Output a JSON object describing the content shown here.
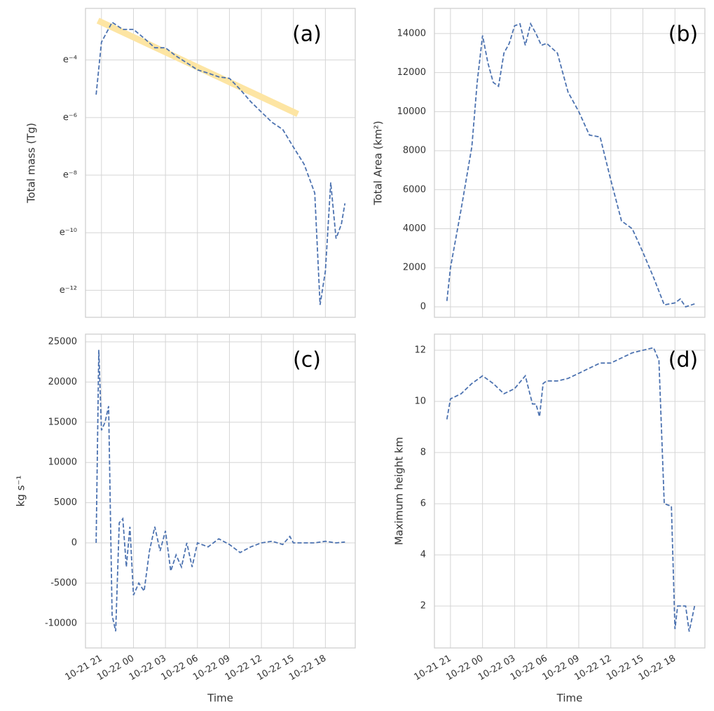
{
  "chart_data": [
    {
      "type": "line",
      "annotation": "(a)",
      "ylabel": "Total mass (Tg)",
      "sharex": 2,
      "log_y": true,
      "grid": true,
      "ylim": [
        2.4e-06,
        0.11
      ],
      "yticks": [
        {
          "value": 0.018315638888734,
          "label": "e⁻⁴"
        },
        {
          "value": 0.002478752176666,
          "label": "e⁻⁶"
        },
        {
          "value": 0.000335462627903,
          "label": "e⁻⁸"
        },
        {
          "value": 4.53999297625e-05,
          "label": "e⁻¹⁰"
        },
        {
          "value": 6.14421235333e-06,
          "label": "e⁻¹²"
        }
      ],
      "series": [
        {
          "color": "#4c72b0",
          "x": [
            "10-21 20:30",
            "10-21 21",
            "10-21 22",
            "10-21 23",
            "10-22 00",
            "10-22 01",
            "10-22 02",
            "10-22 03",
            "10-22 04",
            "10-22 05",
            "10-22 06",
            "10-22 07",
            "10-22 08",
            "10-22 09",
            "10-22 10",
            "10-22 11",
            "10-22 12",
            "10-22 13",
            "10-22 14",
            "10-22 15",
            "10-22 16",
            "10-22 17",
            "10-22 17:30",
            "10-22 18",
            "10-22 18:30",
            "10-22 19",
            "10-22 19:30",
            "10-22 19:50"
          ],
          "values": [
            0.0055,
            0.034,
            0.068,
            0.053,
            0.053,
            0.039,
            0.028,
            0.028,
            0.021,
            0.0166,
            0.013,
            0.0116,
            0.0102,
            0.0097,
            0.0066,
            0.0043,
            0.003,
            0.0021,
            0.00164,
            0.00089,
            0.00049,
            0.00018,
            3.7e-06,
            1.2e-05,
            0.00026,
            3.7e-05,
            6.1e-05,
            0.000126
          ]
        }
      ],
      "fit_line": {
        "color": "#fde5a3",
        "x": [
          "10-21 20:40",
          "10-22 15:25"
        ],
        "values": [
          0.072,
          0.0028
        ]
      }
    },
    {
      "type": "line",
      "annotation": "(b)",
      "ylabel": "Total Area (km²)",
      "sharex": 3,
      "grid": true,
      "ylim": [
        -540,
        15290
      ],
      "yticks": [
        0,
        2000,
        4000,
        6000,
        8000,
        10000,
        12000,
        14000
      ],
      "series": [
        {
          "color": "#4c72b0",
          "x": [
            "10-21 20:40",
            "10-21 21",
            "10-21 22",
            "10-21 23",
            "10-21 23:30",
            "10-22 00",
            "10-22 00:30",
            "10-22 01",
            "10-22 01:30",
            "10-22 02",
            "10-22 02:30",
            "10-22 03",
            "10-22 03:30",
            "10-22 04",
            "10-22 04:30",
            "10-22 05",
            "10-22 05:30",
            "10-22 06",
            "10-22 07",
            "10-22 08",
            "10-22 09",
            "10-22 10",
            "10-22 11",
            "10-22 12",
            "10-22 13",
            "10-22 14",
            "10-22 15",
            "10-22 16",
            "10-22 17",
            "10-22 18",
            "10-22 18:30",
            "10-22 19",
            "10-22 19:50"
          ],
          "values": [
            300,
            2000,
            5000,
            8200,
            11500,
            13900,
            12500,
            11500,
            11300,
            13000,
            13500,
            14400,
            14500,
            13400,
            14500,
            14000,
            13400,
            13500,
            13000,
            11000,
            10000,
            8800,
            8700,
            6500,
            4400,
            4000,
            2800,
            1500,
            100,
            200,
            400,
            0,
            150
          ]
        }
      ]
    },
    {
      "type": "line",
      "annotation": "(c)",
      "ylabel": "kg s⁻¹",
      "xlabel": "Time",
      "grid": true,
      "xlim": [
        "10-21 19:30",
        "10-22 20:48"
      ],
      "xticks": [
        "10-21 21",
        "10-22 00",
        "10-22 03",
        "10-22 06",
        "10-22 09",
        "10-22 12",
        "10-22 15",
        "10-22 18"
      ],
      "ylim": [
        -13070,
        25960
      ],
      "yticks": [
        -10000,
        -5000,
        0,
        5000,
        10000,
        15000,
        20000,
        25000
      ],
      "series": [
        {
          "color": "#4c72b0",
          "x": [
            "10-21 20:30",
            "10-21 20:45",
            "10-21 21",
            "10-21 21:20",
            "10-21 21:40",
            "10-21 22",
            "10-21 22:20",
            "10-21 22:40",
            "10-21 23",
            "10-21 23:20",
            "10-21 23:40",
            "10-22 00",
            "10-22 00:30",
            "10-22 01",
            "10-22 01:30",
            "10-22 02",
            "10-22 02:30",
            "10-22 03",
            "10-22 03:30",
            "10-22 04",
            "10-22 04:30",
            "10-22 05",
            "10-22 05:30",
            "10-22 06",
            "10-22 07",
            "10-22 08",
            "10-22 09",
            "10-22 10",
            "10-22 11",
            "10-22 12",
            "10-22 13",
            "10-22 14",
            "10-22 14:40",
            "10-22 15",
            "10-22 16",
            "10-22 17",
            "10-22 18",
            "10-22 19",
            "10-22 19:50"
          ],
          "values": [
            0,
            24000,
            14000,
            15000,
            17000,
            -9000,
            -11000,
            2500,
            3000,
            -3000,
            2000,
            -6500,
            -5000,
            -6000,
            -1000,
            2000,
            -1000,
            1500,
            -3500,
            -1500,
            -3000,
            0,
            -3000,
            0,
            -500,
            500,
            -200,
            -1200,
            -500,
            0,
            200,
            -200,
            800,
            0,
            0,
            0,
            200,
            0,
            100
          ]
        }
      ]
    },
    {
      "type": "line",
      "annotation": "(d)",
      "ylabel": "Maximum height km",
      "xlabel": "Time",
      "grid": true,
      "xlim": [
        "10-21 19:30",
        "10-22 20:48"
      ],
      "xticks": [
        "10-21 21",
        "10-22 00",
        "10-22 03",
        "10-22 06",
        "10-22 09",
        "10-22 12",
        "10-22 15",
        "10-22 18"
      ],
      "ylim": [
        0.36,
        12.63
      ],
      "yticks": [
        2,
        4,
        6,
        8,
        10,
        12
      ],
      "series": [
        {
          "color": "#4c72b0",
          "x": [
            "10-21 20:40",
            "10-21 21",
            "10-21 22",
            "10-21 23",
            "10-22 00",
            "10-22 01",
            "10-22 02",
            "10-22 03",
            "10-22 04",
            "10-22 04:40",
            "10-22 05",
            "10-22 05:20",
            "10-22 05:40",
            "10-22 06",
            "10-22 07",
            "10-22 08",
            "10-22 09",
            "10-22 10",
            "10-22 11",
            "10-22 12",
            "10-22 13",
            "10-22 14",
            "10-22 15",
            "10-22 16",
            "10-22 16:30",
            "10-22 17",
            "10-22 17:40",
            "10-22 18",
            "10-22 18:15",
            "10-22 19",
            "10-22 19:20",
            "10-22 19:50"
          ],
          "values": [
            9.3,
            10.1,
            10.3,
            10.7,
            11.0,
            10.7,
            10.3,
            10.5,
            11.0,
            9.9,
            9.9,
            9.4,
            10.7,
            10.8,
            10.8,
            10.9,
            11.1,
            11.3,
            11.5,
            11.5,
            11.7,
            11.9,
            12.0,
            12.1,
            11.6,
            6.0,
            5.9,
            1.1,
            2.0,
            2.0,
            1.0,
            2.0
          ]
        }
      ]
    }
  ]
}
